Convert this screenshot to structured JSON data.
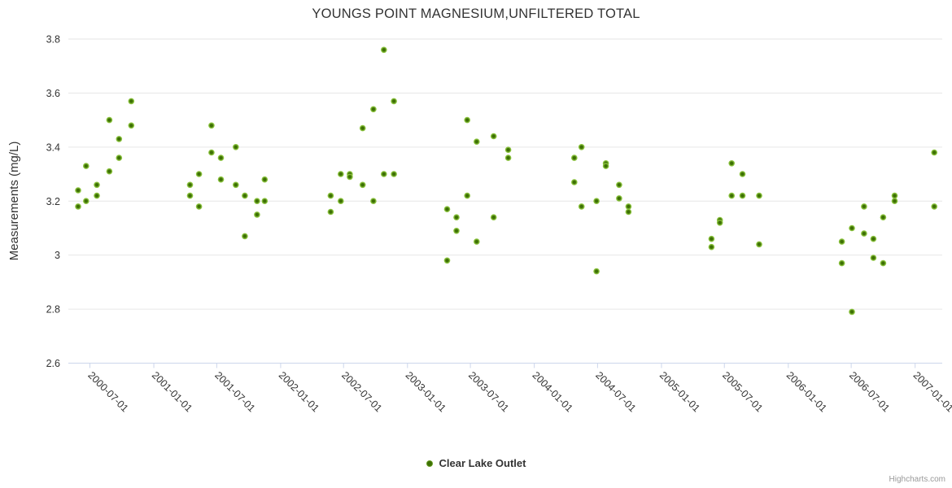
{
  "credit": "Highcharts.com",
  "colors": {
    "background": "#ffffff",
    "marker_outer": "#8cc43f",
    "marker_core": "#3d7004",
    "grid_line": "#e6e6e6",
    "axis_line": "#ccd6eb",
    "tick_mark": "#ccd6eb",
    "text": "#333333",
    "credit_text": "#999999"
  },
  "chart_data": {
    "type": "scatter",
    "title": "YOUNGS POINT MAGNESIUM,UNFILTERED TOTAL",
    "xlabel": "",
    "ylabel": "Measurements (mg/L)",
    "legend_position": "bottom-center",
    "x_axis": {
      "type": "datetime",
      "min": "2000-04-30",
      "max": "2007-03-20",
      "label_rotation_deg": 45,
      "tick_labels": [
        "2000-07-01",
        "2001-01-01",
        "2001-07-01",
        "2002-01-01",
        "2002-07-01",
        "2003-01-01",
        "2003-07-01",
        "2004-01-01",
        "2004-07-01",
        "2005-01-01",
        "2005-07-01",
        "2006-01-01",
        "2006-07-01",
        "2007-01-01"
      ]
    },
    "y_axis": {
      "title": "Measurements (mg/L)",
      "min": 2.6,
      "max": 3.8,
      "grid": true,
      "tick_values": [
        2.6,
        2.8,
        3,
        3.2,
        3.4,
        3.6,
        3.8
      ],
      "tick_labels": [
        "2.6",
        "2.8",
        "3",
        "3.2",
        "3.4",
        "3.6",
        "3.8"
      ]
    },
    "series": [
      {
        "name": "Clear Lake Outlet",
        "marker": "circle",
        "points": [
          [
            "2000-05-28",
            3.24
          ],
          [
            "2000-05-28",
            3.18
          ],
          [
            "2000-06-20",
            3.33
          ],
          [
            "2000-06-20",
            3.2
          ],
          [
            "2000-07-21",
            3.26
          ],
          [
            "2000-07-21",
            3.22
          ],
          [
            "2000-08-26",
            3.5
          ],
          [
            "2000-08-26",
            3.31
          ],
          [
            "2000-09-23",
            3.43
          ],
          [
            "2000-09-23",
            3.36
          ],
          [
            "2000-10-28",
            3.57
          ],
          [
            "2000-10-28",
            3.48
          ],
          [
            "2001-04-15",
            3.26
          ],
          [
            "2001-04-15",
            3.22
          ],
          [
            "2001-05-11",
            3.3
          ],
          [
            "2001-05-11",
            3.18
          ],
          [
            "2001-06-16",
            3.48
          ],
          [
            "2001-06-16",
            3.38
          ],
          [
            "2001-07-13",
            3.36
          ],
          [
            "2001-07-13",
            3.28
          ],
          [
            "2001-08-25",
            3.4
          ],
          [
            "2001-08-25",
            3.26
          ],
          [
            "2001-09-20",
            3.22
          ],
          [
            "2001-09-20",
            3.07
          ],
          [
            "2001-10-25",
            3.2
          ],
          [
            "2001-10-25",
            3.15
          ],
          [
            "2001-11-16",
            3.28
          ],
          [
            "2001-11-16",
            3.2
          ],
          [
            "2002-05-25",
            3.22
          ],
          [
            "2002-05-25",
            3.16
          ],
          [
            "2002-06-23",
            3.3
          ],
          [
            "2002-06-23",
            3.2
          ],
          [
            "2002-07-19",
            3.3
          ],
          [
            "2002-07-19",
            3.29
          ],
          [
            "2002-08-25",
            3.47
          ],
          [
            "2002-08-25",
            3.26
          ],
          [
            "2002-09-25",
            3.54
          ],
          [
            "2002-09-25",
            3.2
          ],
          [
            "2002-10-25",
            3.76
          ],
          [
            "2002-10-25",
            3.3
          ],
          [
            "2002-11-23",
            3.57
          ],
          [
            "2002-11-23",
            3.3
          ],
          [
            "2003-04-25",
            3.17
          ],
          [
            "2003-04-25",
            2.98
          ],
          [
            "2003-05-22",
            3.14
          ],
          [
            "2003-05-22",
            3.09
          ],
          [
            "2003-06-22",
            3.5
          ],
          [
            "2003-06-22",
            3.22
          ],
          [
            "2003-07-19",
            3.42
          ],
          [
            "2003-07-19",
            3.05
          ],
          [
            "2003-09-06",
            3.44
          ],
          [
            "2003-09-06",
            3.14
          ],
          [
            "2003-10-18",
            3.39
          ],
          [
            "2003-10-18",
            3.36
          ],
          [
            "2004-04-25",
            3.36
          ],
          [
            "2004-04-25",
            3.27
          ],
          [
            "2004-05-16",
            3.4
          ],
          [
            "2004-05-16",
            3.18
          ],
          [
            "2004-06-28",
            3.2
          ],
          [
            "2004-06-28",
            2.94
          ],
          [
            "2004-07-25",
            3.34
          ],
          [
            "2004-07-25",
            3.33
          ],
          [
            "2004-09-01",
            3.26
          ],
          [
            "2004-09-01",
            3.21
          ],
          [
            "2004-09-28",
            3.18
          ],
          [
            "2004-09-28",
            3.16
          ],
          [
            "2005-05-25",
            3.06
          ],
          [
            "2005-05-25",
            3.03
          ],
          [
            "2005-06-18",
            3.13
          ],
          [
            "2005-06-18",
            3.12
          ],
          [
            "2005-07-22",
            3.34
          ],
          [
            "2005-07-22",
            3.22
          ],
          [
            "2005-08-22",
            3.3
          ],
          [
            "2005-08-22",
            3.22
          ],
          [
            "2005-10-09",
            3.22
          ],
          [
            "2005-10-09",
            3.04
          ],
          [
            "2006-06-04",
            3.05
          ],
          [
            "2006-06-04",
            2.97
          ],
          [
            "2006-07-03",
            3.1
          ],
          [
            "2006-07-03",
            2.79
          ],
          [
            "2006-08-07",
            3.18
          ],
          [
            "2006-08-07",
            3.08
          ],
          [
            "2006-09-03",
            3.06
          ],
          [
            "2006-09-03",
            2.99
          ],
          [
            "2006-10-01",
            3.14
          ],
          [
            "2006-10-01",
            2.97
          ],
          [
            "2006-11-03",
            3.22
          ],
          [
            "2006-11-03",
            3.2
          ],
          [
            "2007-02-25",
            3.38
          ],
          [
            "2007-02-25",
            3.18
          ]
        ]
      }
    ]
  }
}
